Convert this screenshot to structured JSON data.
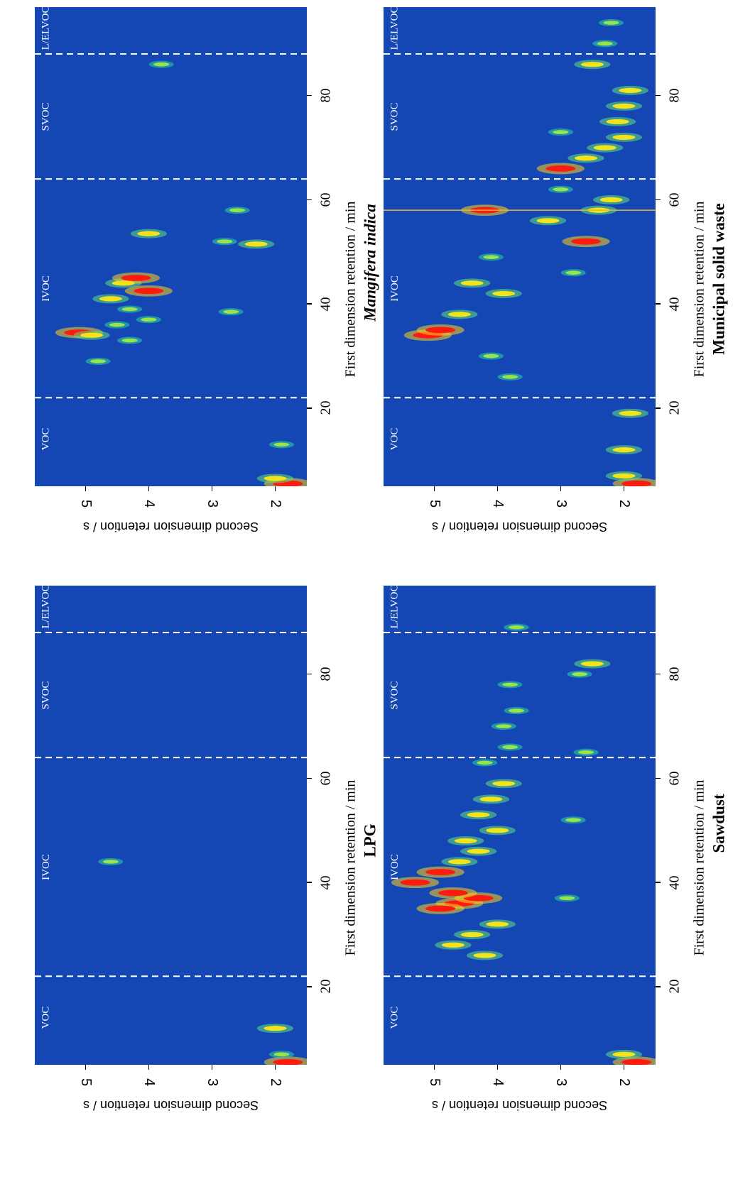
{
  "chart_data": [
    {
      "type": "heatmap",
      "title": "LPG",
      "title_italic": false,
      "xlabel": "First dimension retention / min",
      "ylabel": "Second dimension retention / s",
      "x_ticks": [
        "20",
        "40",
        "60",
        "80"
      ],
      "y_ticks": [
        "2",
        "3",
        "4",
        "5"
      ],
      "xlim": [
        5,
        97
      ],
      "ylim": [
        1.5,
        5.8
      ],
      "regions": [
        "VOC",
        "IVOC",
        "SVOC",
        "L/ELVOC"
      ],
      "region_boundaries": [
        22,
        64,
        88
      ],
      "peaks": [
        {
          "x": 5.5,
          "y": 1.8,
          "i": 3
        },
        {
          "x": 7,
          "y": 1.9,
          "i": 1
        },
        {
          "x": 12,
          "y": 2.0,
          "i": 2
        },
        {
          "x": 44,
          "y": 4.6,
          "i": 1
        }
      ]
    },
    {
      "type": "heatmap",
      "title": "Mangifera indica",
      "title_italic": true,
      "xlabel": "First dimension retention / min",
      "ylabel": "Second dimension retention / s",
      "x_ticks": [
        "20",
        "40",
        "60",
        "80"
      ],
      "y_ticks": [
        "2",
        "3",
        "4",
        "5"
      ],
      "xlim": [
        5,
        97
      ],
      "ylim": [
        1.5,
        5.8
      ],
      "regions": [
        "VOC",
        "IVOC",
        "SVOC",
        "L/ELVOC"
      ],
      "region_boundaries": [
        22,
        64,
        88
      ],
      "peaks": [
        {
          "x": 5.5,
          "y": 1.8,
          "i": 3
        },
        {
          "x": 6.5,
          "y": 2.0,
          "i": 2
        },
        {
          "x": 13,
          "y": 1.9,
          "i": 1
        },
        {
          "x": 34.5,
          "y": 5.1,
          "i": 3
        },
        {
          "x": 34,
          "y": 4.9,
          "i": 2
        },
        {
          "x": 41,
          "y": 4.6,
          "i": 2
        },
        {
          "x": 42.5,
          "y": 4.0,
          "i": 3
        },
        {
          "x": 44,
          "y": 4.4,
          "i": 2
        },
        {
          "x": 45,
          "y": 4.2,
          "i": 3
        },
        {
          "x": 37,
          "y": 4.0,
          "i": 1
        },
        {
          "x": 39,
          "y": 4.3,
          "i": 1
        },
        {
          "x": 53.5,
          "y": 4.0,
          "i": 2
        },
        {
          "x": 51.5,
          "y": 2.3,
          "i": 2
        },
        {
          "x": 33,
          "y": 4.3,
          "i": 1
        },
        {
          "x": 29,
          "y": 4.8,
          "i": 1
        },
        {
          "x": 36,
          "y": 4.5,
          "i": 1
        },
        {
          "x": 38.5,
          "y": 2.7,
          "i": 1
        },
        {
          "x": 52,
          "y": 2.8,
          "i": 1
        },
        {
          "x": 58,
          "y": 2.6,
          "i": 1
        },
        {
          "x": 86,
          "y": 3.8,
          "i": 1
        }
      ]
    },
    {
      "type": "heatmap",
      "title": "Sawdust",
      "title_italic": false,
      "xlabel": "First dimension retention / min",
      "ylabel": "Second dimension retention / s",
      "x_ticks": [
        "20",
        "40",
        "60",
        "80"
      ],
      "y_ticks": [
        "2",
        "3",
        "4",
        "5"
      ],
      "xlim": [
        5,
        97
      ],
      "ylim": [
        1.5,
        5.8
      ],
      "regions": [
        "VOC",
        "IVOC",
        "SVOC",
        "L/ELVOC"
      ],
      "region_boundaries": [
        22,
        64,
        88
      ],
      "peaks": [
        {
          "x": 5.5,
          "y": 1.8,
          "i": 3
        },
        {
          "x": 7,
          "y": 2.0,
          "i": 2
        },
        {
          "x": 36,
          "y": 4.6,
          "i": 3
        },
        {
          "x": 37,
          "y": 4.3,
          "i": 3
        },
        {
          "x": 35,
          "y": 4.9,
          "i": 3
        },
        {
          "x": 38,
          "y": 4.7,
          "i": 3
        },
        {
          "x": 40,
          "y": 5.3,
          "i": 3
        },
        {
          "x": 42,
          "y": 4.9,
          "i": 3
        },
        {
          "x": 44,
          "y": 4.6,
          "i": 2
        },
        {
          "x": 46,
          "y": 4.3,
          "i": 2
        },
        {
          "x": 30,
          "y": 4.4,
          "i": 2
        },
        {
          "x": 28,
          "y": 4.7,
          "i": 2
        },
        {
          "x": 26,
          "y": 4.2,
          "i": 2
        },
        {
          "x": 32,
          "y": 4.0,
          "i": 2
        },
        {
          "x": 48,
          "y": 4.5,
          "i": 2
        },
        {
          "x": 50,
          "y": 4.0,
          "i": 2
        },
        {
          "x": 53,
          "y": 4.3,
          "i": 2
        },
        {
          "x": 56,
          "y": 4.1,
          "i": 2
        },
        {
          "x": 59,
          "y": 3.9,
          "i": 2
        },
        {
          "x": 63,
          "y": 4.2,
          "i": 1
        },
        {
          "x": 66,
          "y": 3.8,
          "i": 1
        },
        {
          "x": 70,
          "y": 3.9,
          "i": 1
        },
        {
          "x": 73,
          "y": 3.7,
          "i": 1
        },
        {
          "x": 78,
          "y": 3.8,
          "i": 1
        },
        {
          "x": 82,
          "y": 2.5,
          "i": 2
        },
        {
          "x": 80,
          "y": 2.7,
          "i": 1
        },
        {
          "x": 65,
          "y": 2.6,
          "i": 1
        },
        {
          "x": 52,
          "y": 2.8,
          "i": 1
        },
        {
          "x": 89,
          "y": 3.7,
          "i": 1
        },
        {
          "x": 37,
          "y": 2.9,
          "i": 1
        }
      ]
    },
    {
      "type": "heatmap",
      "title": "Municipal solid waste",
      "title_italic": false,
      "xlabel": "First dimension retention / min",
      "ylabel": "Second dimension retention / s",
      "x_ticks": [
        "20",
        "40",
        "60",
        "80"
      ],
      "y_ticks": [
        "2",
        "3",
        "4",
        "5"
      ],
      "xlim": [
        5,
        97
      ],
      "ylim": [
        1.5,
        5.8
      ],
      "regions": [
        "VOC",
        "IVOC",
        "SVOC",
        "L/ELVOC"
      ],
      "region_boundaries": [
        22,
        64,
        88
      ],
      "peaks": [
        {
          "x": 5.5,
          "y": 1.8,
          "i": 3
        },
        {
          "x": 7,
          "y": 2.0,
          "i": 2
        },
        {
          "x": 12,
          "y": 2.0,
          "i": 2
        },
        {
          "x": 19,
          "y": 1.9,
          "i": 2
        },
        {
          "x": 34,
          "y": 5.1,
          "i": 3
        },
        {
          "x": 35,
          "y": 4.9,
          "i": 3
        },
        {
          "x": 38,
          "y": 4.6,
          "i": 2
        },
        {
          "x": 44,
          "y": 4.4,
          "i": 2
        },
        {
          "x": 42,
          "y": 3.9,
          "i": 2
        },
        {
          "x": 49,
          "y": 4.1,
          "i": 1
        },
        {
          "x": 52,
          "y": 2.6,
          "i": 3
        },
        {
          "x": 56,
          "y": 3.2,
          "i": 2
        },
        {
          "x": 58,
          "y": 4.2,
          "i": 3
        },
        {
          "x": 58,
          "y": 2.4,
          "i": 2
        },
        {
          "x": 60,
          "y": 2.2,
          "i": 2
        },
        {
          "x": 62,
          "y": 3.0,
          "i": 1
        },
        {
          "x": 66,
          "y": 3.0,
          "i": 3
        },
        {
          "x": 68,
          "y": 2.6,
          "i": 2
        },
        {
          "x": 70,
          "y": 2.3,
          "i": 2
        },
        {
          "x": 72,
          "y": 2.0,
          "i": 2
        },
        {
          "x": 75,
          "y": 2.1,
          "i": 2
        },
        {
          "x": 78,
          "y": 2.0,
          "i": 2
        },
        {
          "x": 81,
          "y": 1.9,
          "i": 2
        },
        {
          "x": 86,
          "y": 2.5,
          "i": 2
        },
        {
          "x": 90,
          "y": 2.3,
          "i": 1
        },
        {
          "x": 73,
          "y": 3.0,
          "i": 1
        },
        {
          "x": 46,
          "y": 2.8,
          "i": 1
        },
        {
          "x": 30,
          "y": 4.1,
          "i": 1
        },
        {
          "x": 26,
          "y": 3.8,
          "i": 1
        },
        {
          "x": 94,
          "y": 2.2,
          "i": 1
        }
      ],
      "streaks": [
        58
      ]
    }
  ]
}
